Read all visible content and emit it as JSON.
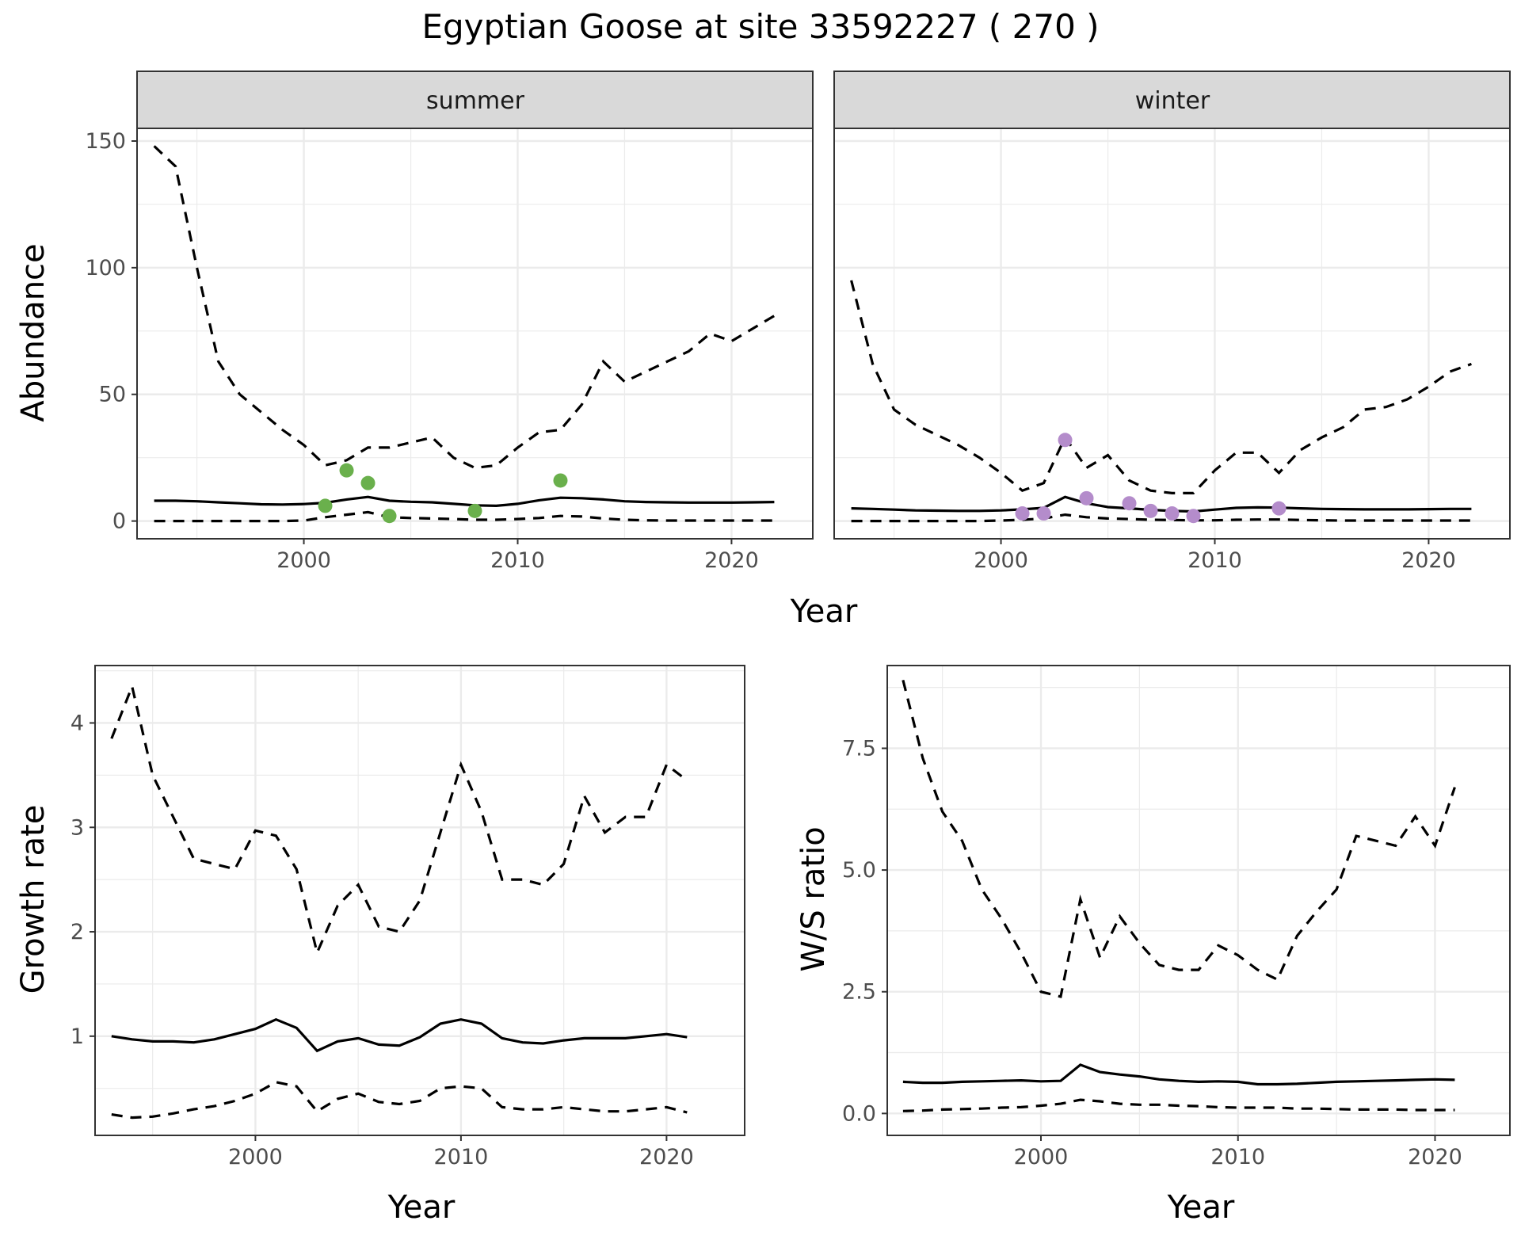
{
  "title": "Egyptian Goose at site 33592227 ( 270 )",
  "colors": {
    "summer_points": "#6ab04c",
    "winter_points": "#b48ccb",
    "lines": "#000000",
    "strip": "#d9d9d9"
  },
  "chart_data": [
    {
      "type": "line",
      "facets": [
        "summer",
        "winter"
      ],
      "xlabel": "Year",
      "ylabel": "Abundance",
      "xlim": [
        1992.2,
        2023.8
      ],
      "ylim": [
        -7,
        155
      ],
      "x_ticks": [
        2000,
        2010,
        2020
      ],
      "y_ticks": [
        0,
        50,
        100,
        150
      ],
      "grid": true,
      "panels": [
        {
          "strip": "summer",
          "series": [
            {
              "style": "dashed",
              "x": [
                1993,
                1994,
                1995,
                1996,
                1997,
                1998,
                1999,
                2000,
                2001,
                2002,
                2003,
                2004,
                2005,
                2006,
                2007,
                2008,
                2009,
                2010,
                2011,
                2012,
                2013,
                2014,
                2015,
                2016,
                2017,
                2018,
                2019,
                2020,
                2021,
                2022
              ],
              "values": [
                148,
                140,
                100,
                63,
                50,
                43,
                36,
                30,
                22,
                24,
                29,
                29,
                31,
                33,
                25,
                21,
                22,
                29,
                35,
                36,
                46,
                63,
                55,
                59,
                63,
                67,
                74,
                71,
                76,
                81
              ]
            },
            {
              "style": "solid",
              "x": [
                1993,
                1994,
                1995,
                1996,
                1997,
                1998,
                1999,
                2000,
                2001,
                2002,
                2003,
                2004,
                2005,
                2006,
                2007,
                2008,
                2009,
                2010,
                2011,
                2012,
                2013,
                2014,
                2015,
                2016,
                2017,
                2018,
                2019,
                2020,
                2021,
                2022
              ],
              "values": [
                8,
                8,
                7.8,
                7.4,
                7,
                6.6,
                6.5,
                6.7,
                7.2,
                8.5,
                9.5,
                8,
                7.6,
                7.4,
                6.8,
                6.2,
                6,
                6.8,
                8.2,
                9.2,
                9,
                8.5,
                7.8,
                7.5,
                7.4,
                7.3,
                7.3,
                7.3,
                7.4,
                7.5
              ]
            },
            {
              "style": "dashed",
              "x": [
                1993,
                1994,
                1995,
                1996,
                1997,
                1998,
                1999,
                2000,
                2001,
                2002,
                2003,
                2004,
                2005,
                2006,
                2007,
                2008,
                2009,
                2010,
                2011,
                2012,
                2013,
                2014,
                2015,
                2016,
                2017,
                2018,
                2019,
                2020,
                2021,
                2022
              ],
              "values": [
                0,
                0,
                0,
                0,
                0,
                0,
                0,
                0.2,
                1.5,
                2.5,
                3.5,
                1.5,
                1.2,
                1,
                0.8,
                0.5,
                0.5,
                0.8,
                1.2,
                2,
                1.8,
                1,
                0.5,
                0.3,
                0.2,
                0.2,
                0.2,
                0.2,
                0.2,
                0.2
              ]
            }
          ],
          "points": {
            "x": [
              2001,
              2002,
              2003,
              2004,
              2008,
              2012
            ],
            "values": [
              6,
              20,
              15,
              2,
              4,
              16
            ]
          }
        },
        {
          "strip": "winter",
          "series": [
            {
              "style": "dashed",
              "x": [
                1993,
                1994,
                1995,
                1996,
                1997,
                1998,
                1999,
                2000,
                2001,
                2002,
                2003,
                2004,
                2005,
                2006,
                2007,
                2008,
                2009,
                2010,
                2011,
                2012,
                2013,
                2014,
                2015,
                2016,
                2017,
                2018,
                2019,
                2020,
                2021,
                2022
              ],
              "values": [
                95,
                62,
                44,
                38,
                34,
                30,
                25,
                19,
                12,
                15,
                33,
                21,
                26,
                16,
                12,
                11,
                11,
                20,
                27,
                27,
                19,
                28,
                33,
                37,
                44,
                45,
                48,
                53,
                59,
                62
              ]
            },
            {
              "style": "solid",
              "x": [
                1993,
                1994,
                1995,
                1996,
                1997,
                1998,
                1999,
                2000,
                2001,
                2002,
                2003,
                2004,
                2005,
                2006,
                2007,
                2008,
                2009,
                2010,
                2011,
                2012,
                2013,
                2014,
                2015,
                2016,
                2017,
                2018,
                2019,
                2020,
                2021,
                2022
              ],
              "values": [
                5,
                4.8,
                4.5,
                4.2,
                4.1,
                4,
                4,
                4.2,
                4.6,
                5.2,
                9.5,
                7,
                5.5,
                5,
                4.4,
                4,
                3.8,
                4.5,
                5.2,
                5.4,
                5.3,
                5,
                4.8,
                4.7,
                4.6,
                4.6,
                4.6,
                4.7,
                4.8,
                4.8
              ]
            },
            {
              "style": "dashed",
              "x": [
                1993,
                1994,
                1995,
                1996,
                1997,
                1998,
                1999,
                2000,
                2001,
                2002,
                2003,
                2004,
                2005,
                2006,
                2007,
                2008,
                2009,
                2010,
                2011,
                2012,
                2013,
                2014,
                2015,
                2016,
                2017,
                2018,
                2019,
                2020,
                2021,
                2022
              ],
              "values": [
                0,
                0,
                0,
                0,
                0,
                0,
                0,
                0.2,
                0.5,
                1,
                2.5,
                1.5,
                1,
                0.8,
                0.5,
                0.4,
                0.3,
                0.3,
                0.5,
                0.6,
                0.6,
                0.4,
                0.3,
                0.2,
                0.2,
                0.2,
                0.2,
                0.2,
                0.2,
                0.2
              ]
            }
          ],
          "points": {
            "x": [
              2001,
              2002,
              2003,
              2004,
              2006,
              2007,
              2008,
              2009,
              2013
            ],
            "values": [
              3,
              3,
              32,
              9,
              7,
              4,
              3,
              2,
              5
            ]
          }
        }
      ]
    },
    {
      "type": "line",
      "xlabel": "Year",
      "ylabel": "Growth rate",
      "xlim": [
        1992.2,
        2023.8
      ],
      "ylim": [
        0.05,
        4.55
      ],
      "x_ticks": [
        2000,
        2010,
        2020
      ],
      "y_ticks": [
        1,
        2,
        3,
        4
      ],
      "grid": true,
      "series": [
        {
          "style": "dashed",
          "x": [
            1993,
            1994,
            1995,
            1996,
            1997,
            1998,
            1999,
            2000,
            2001,
            2002,
            2003,
            2004,
            2005,
            2006,
            2007,
            2008,
            2009,
            2010,
            2011,
            2012,
            2013,
            2014,
            2015,
            2016,
            2017,
            2018,
            2019,
            2020,
            2021
          ],
          "values": [
            3.85,
            4.35,
            3.5,
            3.1,
            2.7,
            2.65,
            2.6,
            2.97,
            2.92,
            2.6,
            1.8,
            2.25,
            2.45,
            2.05,
            2,
            2.3,
            2.95,
            3.6,
            3.15,
            2.5,
            2.5,
            2.45,
            2.65,
            3.3,
            2.95,
            3.1,
            3.1,
            3.6,
            3.45
          ]
        },
        {
          "style": "solid",
          "x": [
            1993,
            1994,
            1995,
            1996,
            1997,
            1998,
            1999,
            2000,
            2001,
            2002,
            2003,
            2004,
            2005,
            2006,
            2007,
            2008,
            2009,
            2010,
            2011,
            2012,
            2013,
            2014,
            2015,
            2016,
            2017,
            2018,
            2019,
            2020,
            2021
          ],
          "values": [
            1,
            0.97,
            0.95,
            0.95,
            0.94,
            0.97,
            1.02,
            1.07,
            1.16,
            1.08,
            0.86,
            0.95,
            0.98,
            0.92,
            0.91,
            0.99,
            1.12,
            1.16,
            1.12,
            0.98,
            0.94,
            0.93,
            0.96,
            0.98,
            0.98,
            0.98,
            1,
            1.02,
            0.99
          ]
        },
        {
          "style": "dashed",
          "x": [
            1993,
            1994,
            1995,
            1996,
            1997,
            1998,
            1999,
            2000,
            2001,
            2002,
            2003,
            2004,
            2005,
            2006,
            2007,
            2008,
            2009,
            2010,
            2011,
            2012,
            2013,
            2014,
            2015,
            2016,
            2017,
            2018,
            2019,
            2020,
            2021
          ],
          "values": [
            0.25,
            0.22,
            0.23,
            0.26,
            0.3,
            0.33,
            0.38,
            0.45,
            0.56,
            0.52,
            0.28,
            0.4,
            0.45,
            0.37,
            0.35,
            0.38,
            0.5,
            0.52,
            0.5,
            0.32,
            0.3,
            0.3,
            0.32,
            0.3,
            0.28,
            0.28,
            0.3,
            0.32,
            0.27
          ]
        }
      ]
    },
    {
      "type": "line",
      "xlabel": "Year",
      "ylabel": "W/S ratio",
      "xlim": [
        1992.2,
        2023.8
      ],
      "ylim": [
        -0.45,
        9.2
      ],
      "x_ticks": [
        2000,
        2010,
        2020
      ],
      "y_ticks": [
        0.0,
        2.5,
        5.0,
        7.5
      ],
      "y_tick_labels": [
        "0.0",
        "2.5",
        "5.0",
        "7.5"
      ],
      "grid": true,
      "series": [
        {
          "style": "dashed",
          "x": [
            1993,
            1994,
            1995,
            1996,
            1997,
            1998,
            1999,
            2000,
            2001,
            2002,
            2003,
            2004,
            2005,
            2006,
            2007,
            2008,
            2009,
            2010,
            2011,
            2012,
            2013,
            2014,
            2015,
            2016,
            2017,
            2018,
            2019,
            2020,
            2021
          ],
          "values": [
            8.9,
            7.3,
            6.2,
            5.6,
            4.6,
            4,
            3.3,
            2.5,
            2.4,
            4.4,
            3.2,
            4.05,
            3.5,
            3.05,
            2.95,
            2.95,
            3.45,
            3.25,
            2.95,
            2.75,
            3.65,
            4.15,
            4.6,
            5.7,
            5.6,
            5.5,
            6.1,
            5.5,
            6.7
          ]
        },
        {
          "style": "solid",
          "x": [
            1993,
            1994,
            1995,
            1996,
            1997,
            1998,
            1999,
            2000,
            2001,
            2002,
            2003,
            2004,
            2005,
            2006,
            2007,
            2008,
            2009,
            2010,
            2011,
            2012,
            2013,
            2014,
            2015,
            2016,
            2017,
            2018,
            2019,
            2020,
            2021
          ],
          "values": [
            0.65,
            0.63,
            0.63,
            0.65,
            0.66,
            0.67,
            0.68,
            0.66,
            0.67,
            1,
            0.85,
            0.8,
            0.76,
            0.7,
            0.67,
            0.65,
            0.66,
            0.65,
            0.6,
            0.6,
            0.61,
            0.63,
            0.65,
            0.66,
            0.67,
            0.68,
            0.69,
            0.7,
            0.69
          ]
        },
        {
          "style": "dashed",
          "x": [
            1993,
            1994,
            1995,
            1996,
            1997,
            1998,
            1999,
            2000,
            2001,
            2002,
            2003,
            2004,
            2005,
            2006,
            2007,
            2008,
            2009,
            2010,
            2011,
            2012,
            2013,
            2014,
            2015,
            2016,
            2017,
            2018,
            2019,
            2020,
            2021
          ],
          "values": [
            0.05,
            0.06,
            0.08,
            0.09,
            0.1,
            0.12,
            0.13,
            0.16,
            0.2,
            0.28,
            0.25,
            0.2,
            0.18,
            0.18,
            0.16,
            0.15,
            0.13,
            0.12,
            0.12,
            0.12,
            0.1,
            0.1,
            0.09,
            0.08,
            0.08,
            0.08,
            0.07,
            0.07,
            0.07
          ]
        }
      ]
    }
  ]
}
